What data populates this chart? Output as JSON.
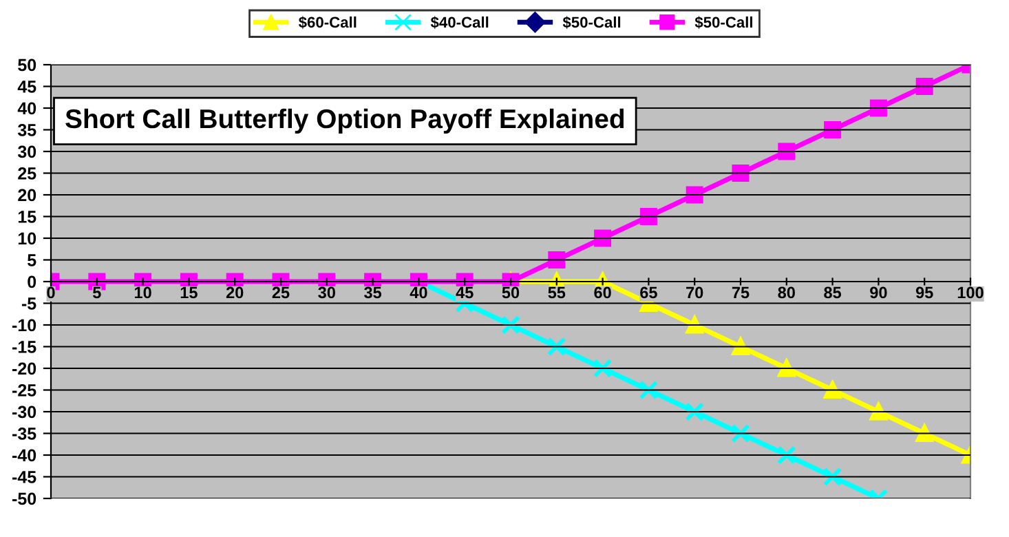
{
  "chart_data": {
    "type": "line",
    "title": "Short Call Butterfly Option Payoff Explained",
    "x": [
      0,
      5,
      10,
      15,
      20,
      25,
      30,
      35,
      40,
      45,
      50,
      55,
      60,
      65,
      70,
      75,
      80,
      85,
      90,
      95,
      100
    ],
    "series": [
      {
        "name": "$60-Call",
        "color": "#ffff00",
        "marker": "triangle",
        "values": [
          null,
          null,
          null,
          null,
          null,
          null,
          null,
          null,
          null,
          null,
          0,
          0,
          0,
          -5,
          -10,
          -15,
          -20,
          -25,
          -30,
          -35,
          -40
        ]
      },
      {
        "name": "$40-Call",
        "color": "#00ffff",
        "marker": "cross",
        "values": [
          null,
          null,
          null,
          null,
          null,
          null,
          null,
          null,
          0,
          -5,
          -10,
          -15,
          -20,
          -25,
          -30,
          -35,
          -40,
          -45,
          -50,
          null,
          null
        ]
      },
      {
        "name": "$50-Call",
        "color": "#000080",
        "marker": "diamond",
        "values": [
          null,
          null,
          null,
          null,
          null,
          null,
          null,
          null,
          null,
          null,
          null,
          null,
          null,
          null,
          null,
          null,
          null,
          null,
          null,
          null,
          null
        ]
      },
      {
        "name": "$50-Call",
        "color": "#ff00ff",
        "marker": "square",
        "values": [
          0,
          0,
          0,
          0,
          0,
          0,
          0,
          0,
          0,
          0,
          0,
          5,
          10,
          15,
          20,
          25,
          30,
          35,
          40,
          45,
          50
        ]
      }
    ],
    "xlim": [
      0,
      100
    ],
    "xticks": [
      0,
      5,
      10,
      15,
      20,
      25,
      30,
      35,
      40,
      45,
      50,
      55,
      60,
      65,
      70,
      75,
      80,
      85,
      90,
      95,
      100
    ],
    "ylim": [
      -50,
      50
    ],
    "yticks": [
      -50,
      -45,
      -40,
      -35,
      -30,
      -25,
      -20,
      -15,
      -10,
      -5,
      0,
      5,
      10,
      15,
      20,
      25,
      30,
      35,
      40,
      45,
      50
    ],
    "grid": "y",
    "legend": "top",
    "line_style": "solid"
  }
}
